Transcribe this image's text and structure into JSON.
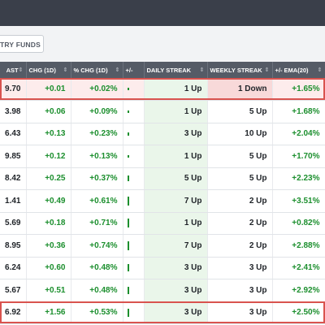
{
  "toolbar": {
    "tab_label": "TRY FUNDS"
  },
  "table": {
    "headers": [
      "AST",
      "CHG (1D)",
      "% CHG (1D)",
      "+/-",
      "DAILY STREAK",
      "WEEKLY STREAK",
      "+/- EMA(20)"
    ],
    "rows": [
      {
        "last": "9.70",
        "chg": "+0.01",
        "pct": "+0.02%",
        "bar": 0.1,
        "daily": "1 Up",
        "weekly": "1 Down",
        "ema": "+1.65%"
      },
      {
        "last": "3.98",
        "chg": "+0.06",
        "pct": "+0.09%",
        "bar": 0.2,
        "daily": "1 Up",
        "weekly": "5 Up",
        "ema": "+1.68%"
      },
      {
        "last": "6.43",
        "chg": "+0.13",
        "pct": "+0.23%",
        "bar": 0.4,
        "daily": "3 Up",
        "weekly": "10 Up",
        "ema": "+2.04%"
      },
      {
        "last": "9.85",
        "chg": "+0.12",
        "pct": "+0.13%",
        "bar": 0.3,
        "daily": "1 Up",
        "weekly": "5 Up",
        "ema": "+1.70%"
      },
      {
        "last": "8.42",
        "chg": "+0.25",
        "pct": "+0.37%",
        "bar": 0.6,
        "daily": "5 Up",
        "weekly": "5 Up",
        "ema": "+2.23%"
      },
      {
        "last": "1.41",
        "chg": "+0.49",
        "pct": "+0.61%",
        "bar": 1.0,
        "daily": "7 Up",
        "weekly": "2 Up",
        "ema": "+3.51%"
      },
      {
        "last": "5.69",
        "chg": "+0.18",
        "pct": "+0.71%",
        "bar": 1.0,
        "daily": "1 Up",
        "weekly": "2 Up",
        "ema": "+0.82%"
      },
      {
        "last": "8.95",
        "chg": "+0.36",
        "pct": "+0.74%",
        "bar": 1.0,
        "daily": "7 Up",
        "weekly": "2 Up",
        "ema": "+2.88%"
      },
      {
        "last": "6.24",
        "chg": "+0.60",
        "pct": "+0.48%",
        "bar": 0.8,
        "daily": "3 Up",
        "weekly": "3 Up",
        "ema": "+2.41%"
      },
      {
        "last": "5.67",
        "chg": "+0.51",
        "pct": "+0.48%",
        "bar": 0.8,
        "daily": "3 Up",
        "weekly": "3 Up",
        "ema": "+2.92%"
      },
      {
        "last": "6.92",
        "chg": "+1.56",
        "pct": "+0.53%",
        "bar": 0.9,
        "daily": "3 Up",
        "weekly": "3 Up",
        "ema": "+2.50%"
      }
    ]
  }
}
